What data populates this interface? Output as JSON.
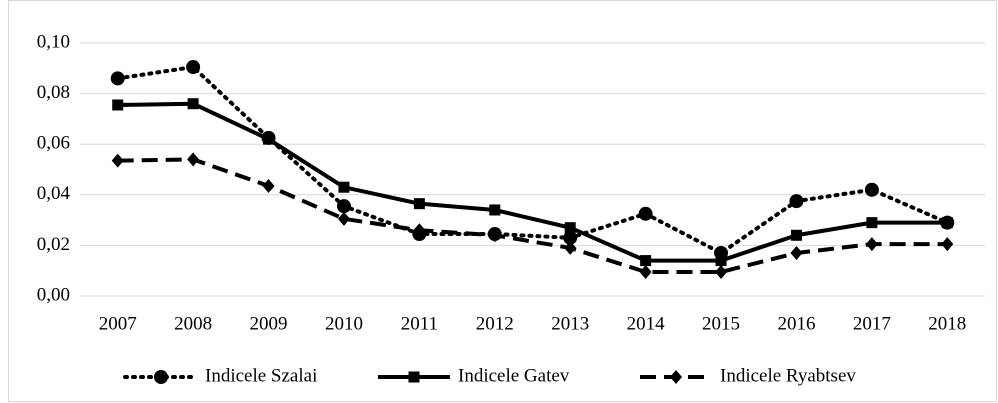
{
  "chart_data": {
    "type": "line",
    "categories": [
      "2007",
      "2008",
      "2009",
      "2010",
      "2011",
      "2012",
      "2013",
      "2014",
      "2015",
      "2016",
      "2017",
      "2018"
    ],
    "series": [
      {
        "name": "Indicele Szalai",
        "color": "#000000",
        "line_style": "dotted",
        "marker": "circle",
        "values": [
          0.086,
          0.0905,
          0.0625,
          0.0355,
          0.0245,
          0.0245,
          0.023,
          0.0325,
          0.017,
          0.0375,
          0.042,
          0.029
        ]
      },
      {
        "name": "Indicele Gatev",
        "color": "#000000",
        "line_style": "solid",
        "marker": "square",
        "values": [
          0.0755,
          0.076,
          0.062,
          0.043,
          0.0365,
          0.034,
          0.027,
          0.014,
          0.014,
          0.024,
          0.029,
          0.029
        ]
      },
      {
        "name": "Indicele Ryabtsev",
        "color": "#000000",
        "line_style": "dashed",
        "marker": "diamond",
        "values": [
          0.0535,
          0.054,
          0.0435,
          0.0305,
          0.026,
          0.024,
          0.019,
          0.0095,
          0.0095,
          0.017,
          0.0205,
          0.0205
        ]
      }
    ],
    "ylim": [
      0,
      0.1
    ],
    "yticks": [
      {
        "value": 0,
        "label": "0,00"
      },
      {
        "value": 0.02,
        "label": "0,02"
      },
      {
        "value": 0.04,
        "label": "0,04"
      },
      {
        "value": 0.06,
        "label": "0,06"
      },
      {
        "value": 0.08,
        "label": "0,08"
      },
      {
        "value": 0.1,
        "label": "0,10"
      }
    ],
    "grid": true,
    "legend": "bottom"
  }
}
